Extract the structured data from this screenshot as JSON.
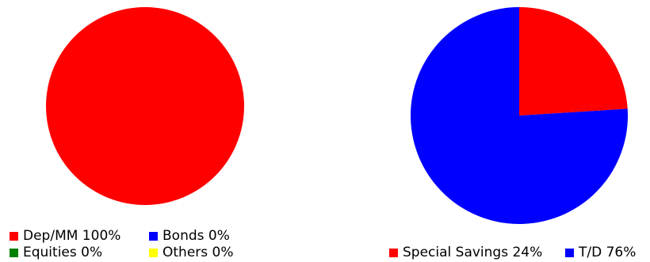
{
  "chart_data": [
    {
      "type": "pie",
      "categories": [
        "Dep/MM",
        "Bonds",
        "Equities",
        "Others"
      ],
      "values": [
        100,
        0,
        0,
        0
      ],
      "colors": [
        "#ff0000",
        "#0000ff",
        "#008000",
        "#ffff00"
      ],
      "legend": {
        "placement": "bottom-left",
        "items": [
          {
            "label": "Dep/MM 100%",
            "color": "#ff0000"
          },
          {
            "label": "Bonds 0%",
            "color": "#0000ff"
          },
          {
            "label": "Equities 0%",
            "color": "#008000"
          },
          {
            "label": "Others 0%",
            "color": "#ffff00"
          }
        ]
      }
    },
    {
      "type": "pie",
      "categories": [
        "Special Savings",
        "T/D"
      ],
      "values": [
        24,
        76
      ],
      "colors": [
        "#ff0000",
        "#0000ff"
      ],
      "legend": {
        "placement": "bottom-center",
        "items": [
          {
            "label": "Special Savings 24%",
            "color": "#ff0000"
          },
          {
            "label": "T/D 76%",
            "color": "#0000ff"
          }
        ]
      }
    }
  ]
}
